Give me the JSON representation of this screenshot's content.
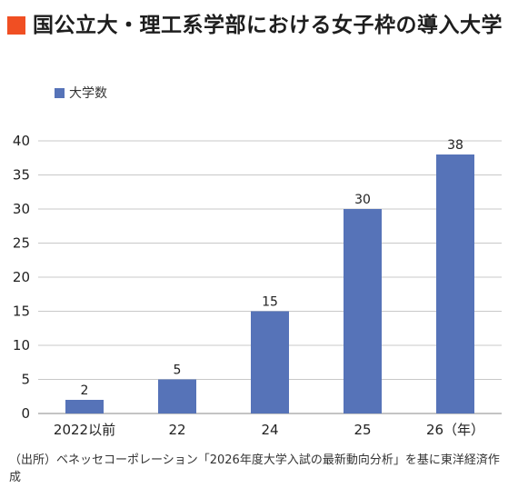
{
  "title": "国公立大・理工系学部における女子枠の導入大学",
  "colors": {
    "accent": "#f04f23",
    "bar": "#5673b8"
  },
  "legend": {
    "label": "大学数"
  },
  "chart_data": {
    "type": "bar",
    "title": "国公立大・理工系学部における女子枠の導入大学",
    "categories": [
      "2022以前",
      "22",
      "24",
      "25",
      "26（年）"
    ],
    "series": [
      {
        "name": "大学数",
        "values": [
          2,
          5,
          15,
          30,
          38
        ]
      }
    ],
    "data_labels": [
      "2",
      "5",
      "15",
      "30",
      "38"
    ],
    "xlabel": "",
    "ylabel": "",
    "ylim": [
      0,
      40
    ],
    "yticks": [
      "0",
      "5",
      "10",
      "15",
      "20",
      "25",
      "30",
      "35",
      "40"
    ],
    "grid": true,
    "legend_position": "top-left"
  },
  "source": "（出所）ベネッセコーポレーション「2026年度大学入試の最新動向分析」を基に東洋経済作成"
}
